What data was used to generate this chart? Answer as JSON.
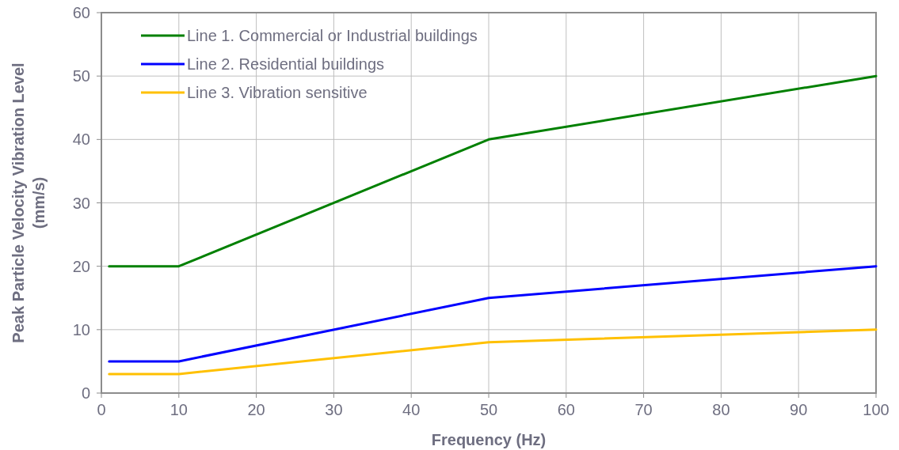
{
  "chart_data": {
    "type": "line",
    "xlabel": "Frequency (Hz)",
    "ylabel": "Peak Particle Velocity Vibration Level\n(mm/s)",
    "xlim": [
      0,
      100
    ],
    "ylim": [
      0,
      60
    ],
    "xticks": [
      0,
      10,
      20,
      30,
      40,
      50,
      60,
      70,
      80,
      90,
      100
    ],
    "yticks": [
      0,
      10,
      20,
      30,
      40,
      50,
      60
    ],
    "grid": true,
    "legend": "top left",
    "marker": "none",
    "line_style": "solid",
    "series": [
      {
        "name": "Line 1. Commercial or Industrial buildings",
        "color": "#008000",
        "x": [
          1,
          10,
          50,
          100
        ],
        "values": [
          20,
          20,
          40,
          50
        ]
      },
      {
        "name": "Line 2. Residential buildings",
        "color": "#0000ff",
        "x": [
          1,
          10,
          50,
          100
        ],
        "values": [
          5,
          5,
          15,
          20
        ]
      },
      {
        "name": "Line 3. Vibration sensitive",
        "color": "#ffc000",
        "x": [
          1,
          10,
          50,
          100
        ],
        "values": [
          3,
          3,
          8,
          10
        ]
      }
    ]
  }
}
